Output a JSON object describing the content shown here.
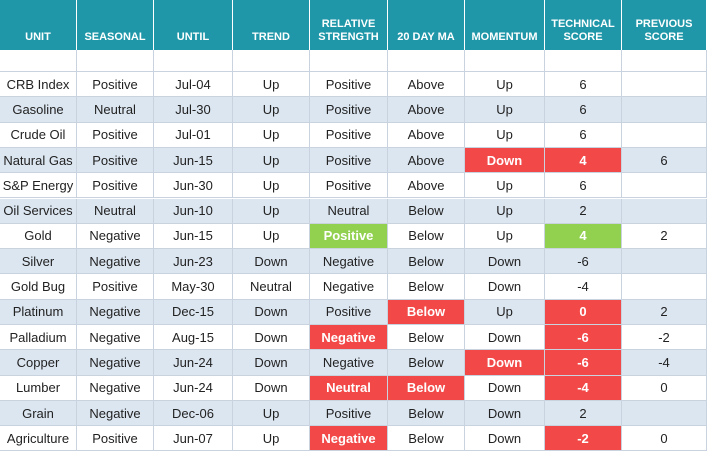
{
  "table": {
    "header": [
      "UNIT",
      "SEASONAL",
      "UNTIL",
      "TREND",
      "RELATIVE STRENGTH",
      "20 DAY MA",
      "MOMENTUM",
      "TECHNICAL SCORE",
      "PREVIOUS SCORE"
    ],
    "rows": [
      [
        "CRB Index",
        "Positive",
        "Jul-04",
        "Up",
        "Positive",
        "Above",
        "Up",
        6,
        null
      ],
      [
        "Gasoline",
        "Neutral",
        "Jul-30",
        "Up",
        "Positive",
        "Above",
        "Up",
        6,
        null
      ],
      [
        "Crude Oil",
        "Positive",
        "Jul-01",
        "Up",
        "Positive",
        "Above",
        "Up",
        6,
        null
      ],
      [
        "Natural Gas",
        "Positive",
        "Jun-15",
        "Up",
        "Positive",
        "Above",
        "Down",
        4,
        6
      ],
      [
        "S&P Energy",
        "Positive",
        "Jun-30",
        "Up",
        "Positive",
        "Above",
        "Up",
        6,
        null
      ],
      [
        "Oil Services",
        "Neutral",
        "Jun-10",
        "Up",
        "Neutral",
        "Below",
        "Up",
        2,
        null
      ],
      [
        "Gold",
        "Negative",
        "Jun-15",
        "Up",
        "Positive",
        "Below",
        "Up",
        4,
        2
      ],
      [
        "Silver",
        "Negative",
        "Jun-23",
        "Down",
        "Negative",
        "Below",
        "Down",
        -6,
        null
      ],
      [
        "Gold Bug",
        "Positive",
        "May-30",
        "Neutral",
        "Negative",
        "Below",
        "Down",
        -4,
        null
      ],
      [
        "Platinum",
        "Negative",
        "Dec-15",
        "Down",
        "Positive",
        "Below",
        "Up",
        0,
        2
      ],
      [
        "Palladium",
        "Negative",
        "Aug-15",
        "Down",
        "Negative",
        "Below",
        "Down",
        -6,
        -2
      ],
      [
        "Copper",
        "Negative",
        "Jun-24",
        "Down",
        "Negative",
        "Below",
        "Down",
        -6,
        -4
      ],
      [
        "Lumber",
        "Negative",
        "Jun-24",
        "Down",
        "Neutral",
        "Below",
        "Down",
        -4,
        0
      ],
      [
        "Grain",
        "Negative",
        "Dec-06",
        "Up",
        "Positive",
        "Below",
        "Down",
        2,
        null
      ],
      [
        "Agriculture",
        "Positive",
        "Jun-07",
        "Up",
        "Negative",
        "Below",
        "Down",
        -2,
        0
      ]
    ]
  }
}
